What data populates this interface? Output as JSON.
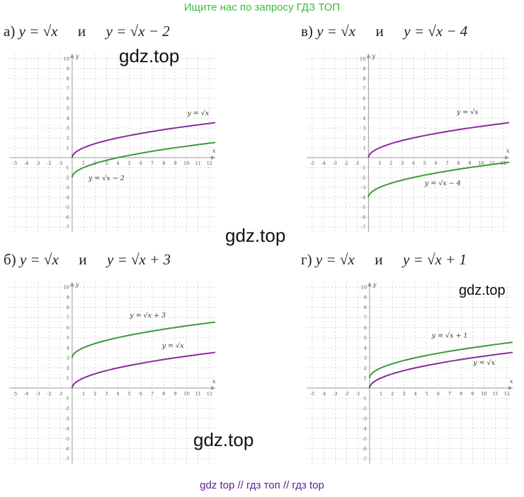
{
  "banner": "Ищите нас по запросу ГДЗ ТОП",
  "footer": "gdz top // гдз топ // гдз top",
  "watermark": "gdz.top",
  "colors": {
    "sqrt_series": "#8b2a9c",
    "shifted_series": "#3a9a3a",
    "grid": "#c8c8c8",
    "axis": "#999999",
    "banner": "#3dbb3d",
    "footer": "#5a1f8c"
  },
  "chart_data": [
    {
      "type": "line",
      "label": "а)",
      "equation_a": "y = √x",
      "conj": "и",
      "equation_b": "y = √x − 2",
      "xlim": [
        -5,
        12
      ],
      "ylim": [
        -7,
        10
      ],
      "x_ticks": [
        -5,
        -4,
        -3,
        -2,
        -1,
        1,
        2,
        3,
        4,
        5,
        6,
        7,
        8,
        9,
        10,
        11,
        12
      ],
      "y_ticks": [
        10,
        9,
        8,
        7,
        6,
        5,
        4,
        3,
        2,
        1,
        -1,
        -2,
        -3,
        -4,
        -5,
        -6,
        -7
      ],
      "xlabel": "x",
      "ylabel": "y",
      "grid": true,
      "series": [
        {
          "name": "y = √x",
          "shift": 0,
          "color": "#8b2a9c",
          "label_at": [
            11,
            4.3
          ]
        },
        {
          "name": "y = √x − 2",
          "shift": -2,
          "color": "#3a9a3a",
          "label_at": [
            3,
            -2.3
          ]
        }
      ]
    },
    {
      "type": "line",
      "label": "в)",
      "equation_a": "y = √x",
      "conj": "и",
      "equation_b": "y = √x − 4",
      "xlim": [
        -5,
        12
      ],
      "ylim": [
        -7,
        10
      ],
      "x_ticks": [
        -5,
        -4,
        -3,
        -2,
        -1,
        1,
        2,
        3,
        4,
        5,
        6,
        7,
        8,
        9,
        10,
        11,
        12
      ],
      "y_ticks": [
        10,
        9,
        8,
        7,
        6,
        5,
        4,
        3,
        2,
        1,
        -1,
        -2,
        -3,
        -4,
        -5,
        -6,
        -7
      ],
      "xlabel": "x",
      "ylabel": "y",
      "grid": true,
      "series": [
        {
          "name": "y = √x",
          "shift": 0,
          "color": "#8b2a9c",
          "label_at": [
            8.8,
            4.4
          ]
        },
        {
          "name": "y = √x − 4",
          "shift": -4,
          "color": "#3a9a3a",
          "label_at": [
            6.6,
            -2.8
          ]
        }
      ]
    },
    {
      "type": "line",
      "label": "б)",
      "equation_a": "y = √x",
      "conj": "и",
      "equation_b": "y = √x + 3",
      "xlim": [
        -5,
        12
      ],
      "ylim": [
        -7,
        10
      ],
      "x_ticks": [
        -5,
        -4,
        -3,
        -2,
        -1,
        1,
        2,
        3,
        4,
        5,
        6,
        7,
        8,
        9,
        10,
        11,
        12
      ],
      "y_ticks": [
        10,
        9,
        8,
        7,
        6,
        5,
        4,
        3,
        2,
        1,
        -1,
        -2,
        -3,
        -4,
        -5,
        -6,
        -7
      ],
      "xlabel": "x",
      "ylabel": "y",
      "grid": true,
      "series": [
        {
          "name": "y = √x",
          "shift": 0,
          "color": "#8b2a9c",
          "label_at": [
            8.8,
            4.0
          ]
        },
        {
          "name": "y = √x + 3",
          "shift": 3,
          "color": "#3a9a3a",
          "label_at": [
            6.6,
            7.0
          ]
        }
      ]
    },
    {
      "type": "line",
      "label": "г)",
      "equation_a": "y = √x",
      "conj": "и",
      "equation_b": "y = √x + 1",
      "xlim": [
        -5,
        12
      ],
      "ylim": [
        -7,
        10
      ],
      "x_ticks": [
        -5,
        -4,
        -3,
        -2,
        -1,
        1,
        2,
        3,
        4,
        5,
        6,
        7,
        8,
        9,
        10,
        11,
        12
      ],
      "y_ticks": [
        10,
        9,
        8,
        7,
        6,
        5,
        4,
        3,
        2,
        1,
        -1,
        -2,
        -3,
        -4,
        -5,
        -6,
        -7
      ],
      "xlabel": "x",
      "ylabel": "y",
      "grid": true,
      "series": [
        {
          "name": "y = √x",
          "shift": 0,
          "color": "#8b2a9c",
          "label_at": [
            10,
            2.3
          ]
        },
        {
          "name": "y = √x + 1",
          "shift": 1,
          "color": "#3a9a3a",
          "label_at": [
            7,
            5.0
          ]
        }
      ]
    }
  ]
}
